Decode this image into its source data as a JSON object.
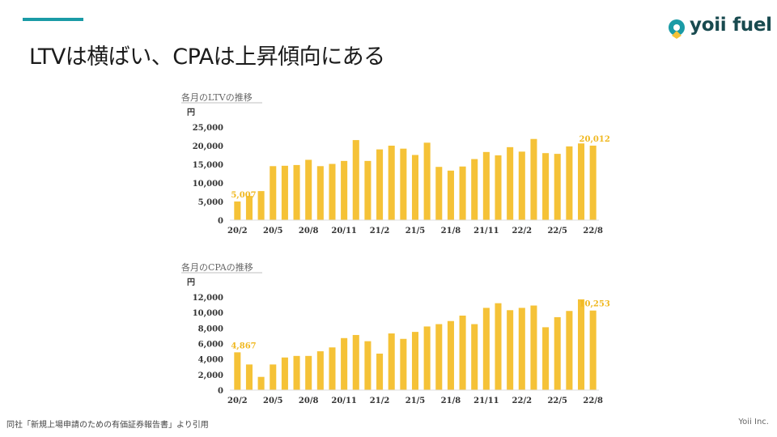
{
  "slide": {
    "title": "LTVは横ばい、CPAは上昇傾向にある",
    "logo_text": "yoii fuel",
    "footnote": "同社「新規上場申請のための有価証券報告書」より引用",
    "company": "Yoii Inc.",
    "accent_color": "#1a9ba6",
    "bar_color": "#f5c237"
  },
  "chart_data": [
    {
      "type": "bar",
      "title": "各月のLTVの推移",
      "ylabel": "円",
      "ylim": [
        0,
        25000
      ],
      "yticks": [
        0,
        5000,
        10000,
        15000,
        20000,
        25000
      ],
      "ytick_labels": [
        "0",
        "5,000",
        "10,000",
        "15,000",
        "20,000",
        "25,000"
      ],
      "categories": [
        "20/2",
        "20/3",
        "20/4",
        "20/5",
        "20/6",
        "20/7",
        "20/8",
        "20/9",
        "20/10",
        "20/11",
        "20/12",
        "21/1",
        "21/2",
        "21/3",
        "21/4",
        "21/5",
        "21/6",
        "21/7",
        "21/8",
        "21/9",
        "21/10",
        "21/11",
        "21/12",
        "22/1",
        "22/2",
        "22/3",
        "22/4",
        "22/5",
        "22/6",
        "22/7",
        "22/8"
      ],
      "xtick_labels": [
        "20/2",
        "20/5",
        "20/8",
        "20/11",
        "21/2",
        "21/5",
        "21/8",
        "21/11",
        "22/2",
        "22/5",
        "22/8"
      ],
      "values": [
        5007,
        6500,
        7800,
        14500,
        14600,
        14800,
        16200,
        14500,
        15100,
        15900,
        21500,
        15900,
        19000,
        20000,
        19200,
        17500,
        20800,
        14300,
        13300,
        14400,
        16400,
        18300,
        17400,
        19600,
        18400,
        21800,
        18000,
        17800,
        19800,
        20600,
        20012
      ],
      "data_labels": [
        {
          "index": 0,
          "text": "5,007"
        },
        {
          "index": 30,
          "text": "20,012"
        }
      ]
    },
    {
      "type": "bar",
      "title": "各月のCPAの推移",
      "ylabel": "円",
      "ylim": [
        0,
        12000
      ],
      "yticks": [
        0,
        2000,
        4000,
        6000,
        8000,
        10000,
        12000
      ],
      "ytick_labels": [
        "0",
        "2,000",
        "4,000",
        "6,000",
        "8,000",
        "10,000",
        "12,000"
      ],
      "categories": [
        "20/2",
        "20/3",
        "20/4",
        "20/5",
        "20/6",
        "20/7",
        "20/8",
        "20/9",
        "20/10",
        "20/11",
        "20/12",
        "21/1",
        "21/2",
        "21/3",
        "21/4",
        "21/5",
        "21/6",
        "21/7",
        "21/8",
        "21/9",
        "21/10",
        "21/11",
        "21/12",
        "22/1",
        "22/2",
        "22/3",
        "22/4",
        "22/5",
        "22/6",
        "22/7",
        "22/8"
      ],
      "xtick_labels": [
        "20/2",
        "20/5",
        "20/8",
        "20/11",
        "21/2",
        "21/5",
        "21/8",
        "21/11",
        "22/2",
        "22/5",
        "22/8"
      ],
      "values": [
        4867,
        3300,
        1700,
        3300,
        4200,
        4400,
        4400,
        5000,
        5500,
        6700,
        7100,
        6300,
        4700,
        7300,
        6600,
        7500,
        8200,
        8500,
        8900,
        9600,
        8500,
        10600,
        11200,
        10300,
        10600,
        10900,
        8100,
        9400,
        10200,
        11700,
        10253
      ],
      "data_labels": [
        {
          "index": 0,
          "text": "4,867"
        },
        {
          "index": 30,
          "text": "10,253"
        }
      ]
    }
  ]
}
